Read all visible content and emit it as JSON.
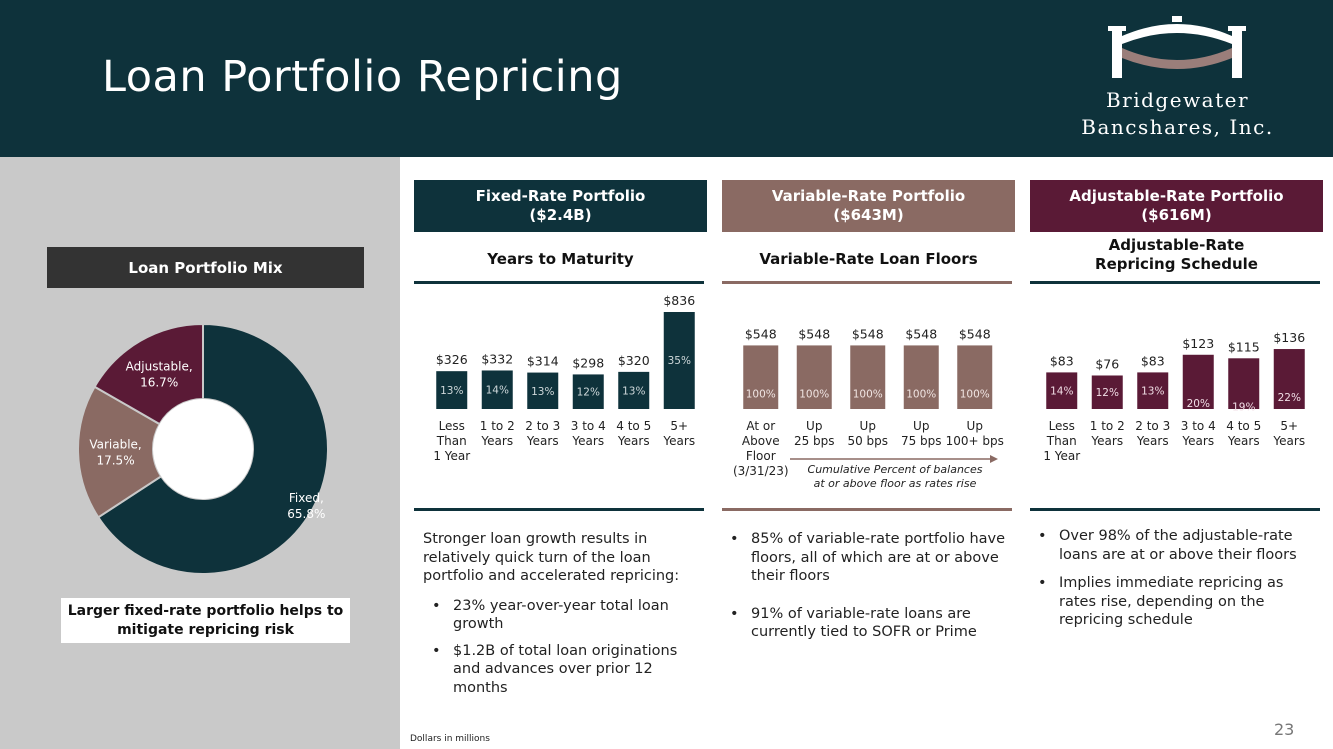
{
  "header": {
    "title": "Loan Portfolio Repricing",
    "logo_line1": "Bridgewater",
    "logo_line2": "Bancshares, Inc.",
    "bg_color": "#0e323b"
  },
  "left_panel": {
    "mix_label": "Loan Portfolio Mix",
    "note": "Larger fixed-rate portfolio helps to mitigate repricing risk"
  },
  "columns": [
    {
      "header_line1": "Fixed-Rate Portfolio",
      "header_line2": "($2.4B)",
      "subtitle_line1": "Years to Maturity",
      "subtitle_line2": "",
      "color": "#0e323b"
    },
    {
      "header_line1": "Variable-Rate Portfolio",
      "header_line2": "($643M)",
      "subtitle_line1": "Variable-Rate Loan Floors",
      "subtitle_line2": "",
      "color": "#8a6a63"
    },
    {
      "header_line1": "Adjustable-Rate Portfolio",
      "header_line2": "($616M)",
      "subtitle_line1": "Adjustable-Rate",
      "subtitle_line2": "Repricing Schedule",
      "color": "#5a1a36"
    }
  ],
  "variable_arrow_note_line1": "Cumulative Percent of balances",
  "variable_arrow_note_line2": "at or above floor as rates rise",
  "text": {
    "fixed_intro": "Stronger loan growth results in relatively quick turn of the loan portfolio and accelerated repricing:",
    "fixed_bullets": [
      "23% year-over-year total loan growth",
      "$1.2B of total loan originations and advances over prior 12 months"
    ],
    "variable_bullets": [
      "85% of variable-rate portfolio have floors, all of which are at or above their floors",
      "91% of variable-rate loans are currently tied to SOFR or Prime"
    ],
    "adjustable_bullets": [
      "Over 98% of the adjustable-rate loans are at or above their floors",
      "Implies immediate repricing as rates rise, depending on the repricing schedule"
    ]
  },
  "footnote": "Dollars in millions",
  "page_number": "23",
  "chart_data": [
    {
      "type": "pie",
      "title": "Loan Portfolio Mix",
      "slices": [
        {
          "label": "Fixed,",
          "pct_label": "65.8%",
          "value": 65.8,
          "color": "#0e323b"
        },
        {
          "label": "Variable,",
          "pct_label": "17.5%",
          "value": 17.5,
          "color": "#8a6a63"
        },
        {
          "label": "Adjustable,",
          "pct_label": "16.7%",
          "value": 16.7,
          "color": "#5a1a36"
        }
      ]
    },
    {
      "type": "bar",
      "title": "Years to Maturity",
      "categories": [
        [
          "Less",
          "Than",
          "1 Year"
        ],
        [
          "1 to 2",
          "Years"
        ],
        [
          "2 to 3",
          "Years"
        ],
        [
          "3 to 4",
          "Years"
        ],
        [
          "4 to 5",
          "Years"
        ],
        [
          "5+",
          "Years"
        ]
      ],
      "values": [
        326,
        332,
        314,
        298,
        320,
        836
      ],
      "value_labels": [
        "$326",
        "$332",
        "$314",
        "$298",
        "$320",
        "$836"
      ],
      "pct_labels": [
        "13%",
        "14%",
        "13%",
        "12%",
        "13%",
        "35%"
      ],
      "color": "#0e323b",
      "ylim": [
        0,
        836
      ]
    },
    {
      "type": "bar",
      "title": "Variable-Rate Loan Floors",
      "categories": [
        [
          "At or",
          "Above",
          "Floor",
          "(3/31/23)"
        ],
        [
          "Up",
          "25 bps"
        ],
        [
          "Up",
          "50 bps"
        ],
        [
          "Up",
          "75 bps"
        ],
        [
          "Up",
          "100+ bps"
        ]
      ],
      "values": [
        548,
        548,
        548,
        548,
        548
      ],
      "value_labels": [
        "$548",
        "$548",
        "$548",
        "$548",
        "$548"
      ],
      "pct_labels": [
        "100%",
        "100%",
        "100%",
        "100%",
        "100%"
      ],
      "color": "#8a6a63",
      "ylim": [
        0,
        836
      ]
    },
    {
      "type": "bar",
      "title": "Adjustable-Rate Repricing Schedule",
      "categories": [
        [
          "Less",
          "Than",
          "1 Year"
        ],
        [
          "1 to 2",
          "Years"
        ],
        [
          "2 to 3",
          "Years"
        ],
        [
          "3 to 4",
          "Years"
        ],
        [
          "4 to 5",
          "Years"
        ],
        [
          "5+",
          "Years"
        ]
      ],
      "values": [
        83,
        76,
        83,
        123,
        115,
        136
      ],
      "value_labels": [
        "$83",
        "$76",
        "$83",
        "$123",
        "$115",
        "$136"
      ],
      "pct_labels": [
        "14%",
        "12%",
        "13%",
        "20%",
        "19%",
        "22%"
      ],
      "color": "#5a1a36",
      "ylim": [
        0,
        220
      ]
    }
  ]
}
